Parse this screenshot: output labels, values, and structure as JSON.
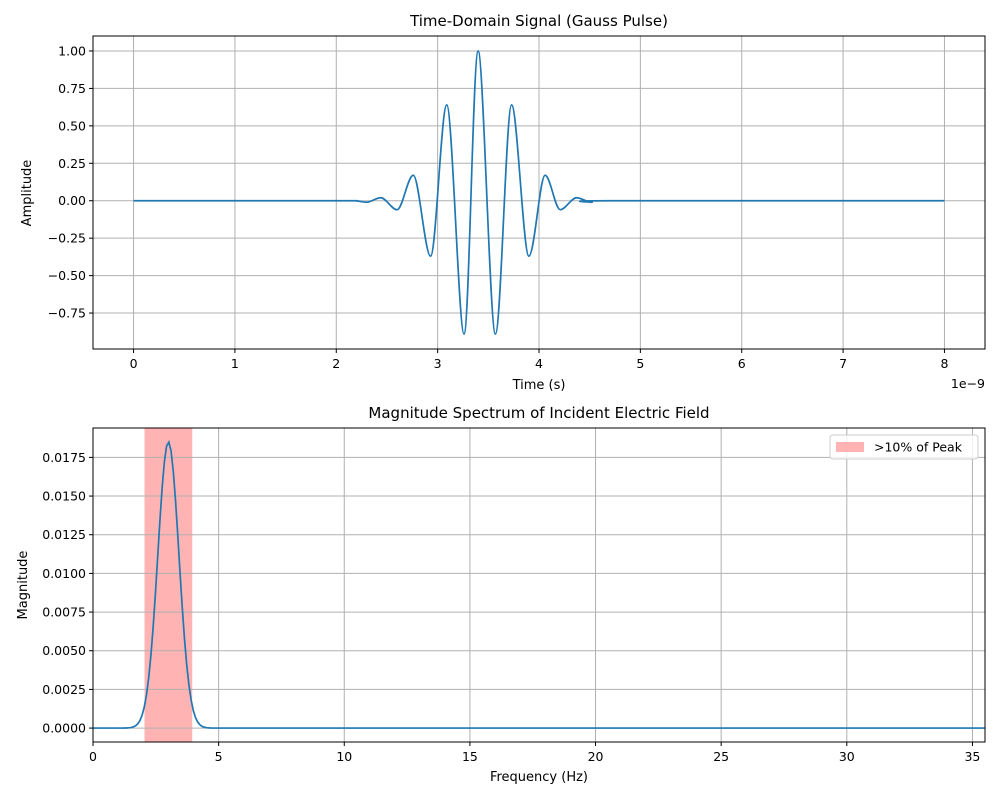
{
  "chart_data": [
    {
      "type": "line",
      "title": "Time-Domain Signal (Gauss Pulse)",
      "xlabel": "Time (s)",
      "ylabel": "Amplitude",
      "x_offset_label": "1e−9",
      "xlim": [
        -4e-10,
        8.4e-09
      ],
      "ylim": [
        -0.99,
        1.1
      ],
      "xticks": [
        0,
        1e-09,
        2e-09,
        3e-09,
        4e-09,
        5e-09,
        6e-09,
        7e-09,
        8e-09
      ],
      "xtick_labels": [
        "0",
        "1",
        "2",
        "3",
        "4",
        "5",
        "6",
        "7",
        "8"
      ],
      "yticks": [
        -0.75,
        -0.5,
        -0.25,
        0.0,
        0.25,
        0.5,
        0.75,
        1.0
      ],
      "ytick_labels": [
        "−0.75",
        "−0.50",
        "−0.25",
        "0.00",
        "0.25",
        "0.50",
        "0.75",
        "1.00"
      ],
      "grid": true,
      "color": "#1f77b4",
      "series": [
        {
          "x": [
            0,
            2e-09,
            2.18e-09,
            2.3e-09,
            2.44e-09,
            2.6e-09,
            2.76e-09,
            2.93e-09,
            3.09e-09,
            3.26e-09,
            3.4e-09,
            3.57e-09,
            3.73e-09,
            3.9e-09,
            4.06e-09,
            4.21e-09,
            4.37e-09,
            4.52e-09,
            4.7e-09,
            8e-09
          ],
          "y": [
            0.0,
            0.0,
            0.0,
            -0.01,
            0.02,
            -0.06,
            0.17,
            -0.37,
            0.64,
            -0.89,
            1.0,
            -0.89,
            0.64,
            -0.37,
            0.17,
            -0.06,
            0.02,
            -0.01,
            0.0,
            0.0
          ]
        }
      ]
    },
    {
      "type": "line",
      "title": "Magnitude Spectrum of Incident Electric Field",
      "xlabel": "Frequency (Hz)",
      "ylabel": "Magnitude",
      "xlim": [
        0,
        35.5
      ],
      "ylim": [
        -0.0009,
        0.0194
      ],
      "xticks": [
        0,
        5,
        10,
        15,
        20,
        25,
        30,
        35
      ],
      "xtick_labels": [
        "0",
        "5",
        "10",
        "15",
        "20",
        "25",
        "30",
        "35"
      ],
      "yticks": [
        0.0,
        0.0025,
        0.005,
        0.0075,
        0.01,
        0.0125,
        0.015,
        0.0175
      ],
      "ytick_labels": [
        "0.0000",
        "0.0025",
        "0.0050",
        "0.0075",
        "0.0100",
        "0.0125",
        "0.0150",
        "0.0175"
      ],
      "grid": true,
      "color": "#1f77b4",
      "peak": {
        "center": 3.0,
        "value": 0.0185,
        "sigma": 0.42
      },
      "shaded_region": {
        "x0": 2.05,
        "x1": 3.95,
        "color": "#ff9999",
        "label": ">10% of Peak"
      },
      "legend": {
        "position": "upper-right",
        "entries": [
          ">10% of Peak"
        ]
      }
    }
  ]
}
